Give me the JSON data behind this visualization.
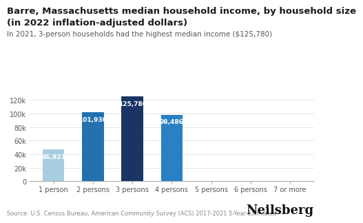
{
  "title_line1": "Barre, Massachusetts median household income, by household size",
  "title_line2": "(in 2022 inflation-adjusted dollars)",
  "subtitle": "In 2021, 3-person households had the highest median income ($125,780)",
  "source": "Source: U.S. Census Bureau, American Community Survey (ACS) 2017-2021 5-Year Estimates",
  "categories": [
    "1 person",
    "2 persons",
    "3 persons",
    "4 persons",
    "5 persons",
    "6 persons",
    "7 or more"
  ],
  "values": [
    46921,
    101930,
    125780,
    98486,
    0,
    0,
    0
  ],
  "bar_colors": [
    "#a8cce0",
    "#2471b0",
    "#1a3464",
    "#2980c4",
    "#c0c0c0",
    "#c0c0c0",
    "#c0c0c0"
  ],
  "bar_labels": [
    "46,921",
    "101,930",
    "125,780",
    "98,486",
    "",
    "",
    ""
  ],
  "label_color": "#ffffff",
  "ylim": [
    0,
    135000
  ],
  "yticks": [
    0,
    20000,
    40000,
    60000,
    80000,
    100000,
    120000
  ],
  "ytick_labels": [
    "0",
    "20k",
    "40k",
    "60k",
    "80k",
    "100k",
    "120k"
  ],
  "background_color": "#ffffff",
  "title_fontsize": 9.5,
  "subtitle_fontsize": 7.5,
  "source_fontsize": 6,
  "neilsberg_fontsize": 13,
  "axis_color": "#aaaaaa",
  "grid_color": "#e0e0e0",
  "tick_label_fontsize": 7,
  "bar_label_fontsize": 6.5
}
